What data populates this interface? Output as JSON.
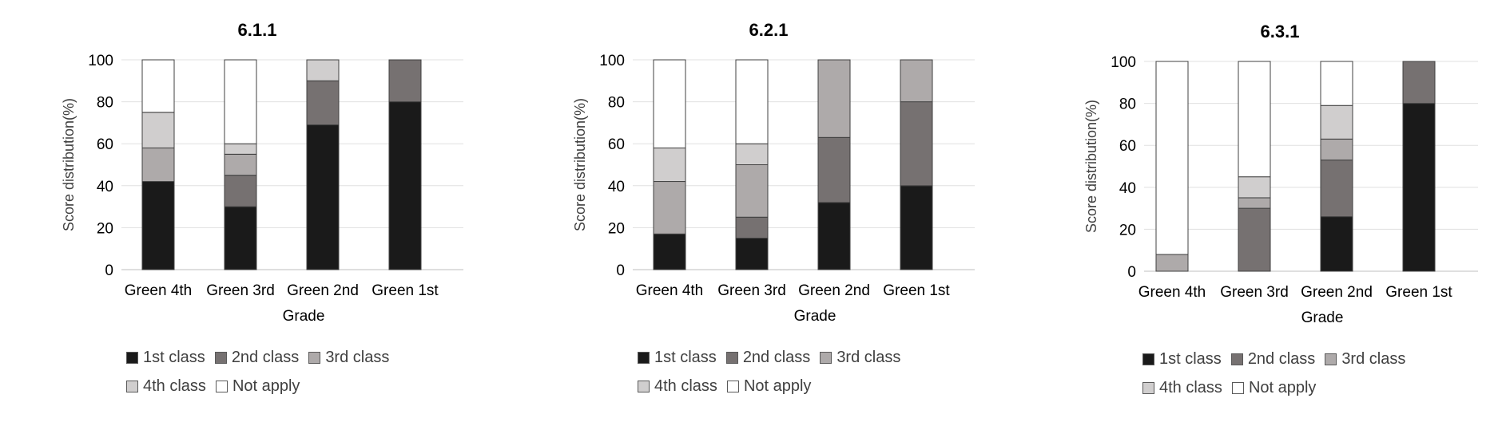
{
  "legend": {
    "items": [
      {
        "name": "1st class",
        "color": "#1a1a1a"
      },
      {
        "name": "2nd class",
        "color": "#767171"
      },
      {
        "name": "3rd class",
        "color": "#aeaaaa"
      },
      {
        "name": "4th class",
        "color": "#d0cece"
      },
      {
        "name": "Not apply",
        "color": "#ffffff"
      }
    ]
  },
  "chart_data": [
    {
      "type": "bar",
      "stacked": true,
      "title": "6.1.1",
      "xlabel": "Grade",
      "ylabel": "Score distribution(%)",
      "ylim": [
        0,
        100
      ],
      "yticks": [
        "0",
        "20",
        "40",
        "60",
        "80",
        "100"
      ],
      "grid": true,
      "legend_position": "bottom",
      "categories": [
        "Green 4th",
        "Green 3rd",
        "Green 2nd",
        "Green 1st"
      ],
      "series": [
        {
          "name": "1st class",
          "values": [
            42,
            30,
            69,
            80
          ]
        },
        {
          "name": "2nd class",
          "values": [
            0,
            15,
            21,
            20
          ]
        },
        {
          "name": "3rd class",
          "values": [
            16,
            10,
            0,
            0
          ]
        },
        {
          "name": "4th class",
          "values": [
            17,
            5,
            10,
            0
          ]
        },
        {
          "name": "Not apply",
          "values": [
            25,
            40,
            0,
            0
          ]
        }
      ]
    },
    {
      "type": "bar",
      "stacked": true,
      "title": "6.2.1",
      "xlabel": "Grade",
      "ylabel": "Score distribution(%)",
      "ylim": [
        0,
        100
      ],
      "yticks": [
        "0",
        "20",
        "40",
        "60",
        "80",
        "100"
      ],
      "grid": true,
      "legend_position": "bottom",
      "categories": [
        "Green 4th",
        "Green 3rd",
        "Green 2nd",
        "Green 1st"
      ],
      "series": [
        {
          "name": "1st class",
          "values": [
            17,
            15,
            32,
            40
          ]
        },
        {
          "name": "2nd class",
          "values": [
            0,
            10,
            31,
            40
          ]
        },
        {
          "name": "3rd class",
          "values": [
            25,
            25,
            37,
            20
          ]
        },
        {
          "name": "4th class",
          "values": [
            16,
            10,
            0,
            0
          ]
        },
        {
          "name": "Not apply",
          "values": [
            42,
            40,
            0,
            0
          ]
        }
      ]
    },
    {
      "type": "bar",
      "stacked": true,
      "title": "6.3.1",
      "xlabel": "Grade",
      "ylabel": "Score distribution(%)",
      "ylim": [
        0,
        100
      ],
      "yticks": [
        "0",
        "20",
        "40",
        "60",
        "80",
        "100"
      ],
      "grid": true,
      "legend_position": "bottom",
      "categories": [
        "Green 4th",
        "Green 3rd",
        "Green 2nd",
        "Green 1st"
      ],
      "series": [
        {
          "name": "1st class",
          "values": [
            0,
            0,
            26,
            80
          ]
        },
        {
          "name": "2nd class",
          "values": [
            0,
            30,
            27,
            20
          ]
        },
        {
          "name": "3rd class",
          "values": [
            8,
            5,
            10,
            0
          ]
        },
        {
          "name": "4th class",
          "values": [
            0,
            10,
            16,
            0
          ]
        },
        {
          "name": "Not apply",
          "values": [
            92,
            55,
            21,
            0
          ]
        }
      ]
    }
  ]
}
